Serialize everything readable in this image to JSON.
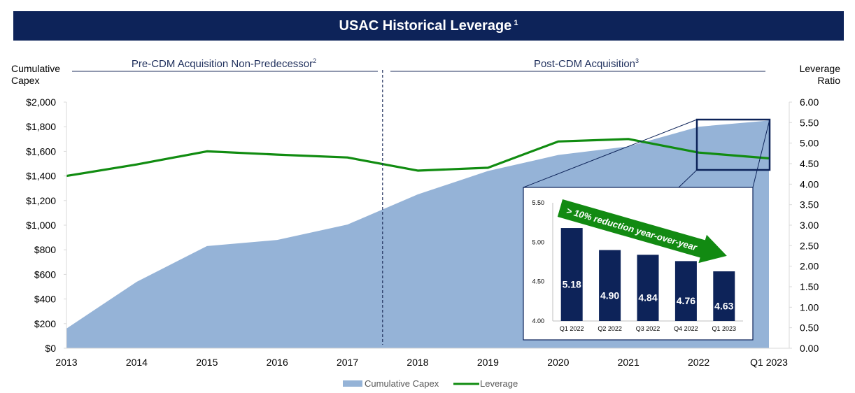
{
  "title": "USAC Historical Leverage",
  "title_sup": "1",
  "sections": [
    {
      "label": "Pre-CDM Acquisition Non-Predecessor",
      "sup": "2"
    },
    {
      "label": "Post-CDM Acquisition",
      "sup": "3"
    }
  ],
  "colors": {
    "banner": "#0d2359",
    "area": "#95b3d7",
    "line": "#118c11",
    "bars": "#0d2359",
    "arrow": "#128a12",
    "section_line": "#1f2f5c"
  },
  "chart_data": [
    {
      "type": "area+line",
      "categories": [
        "2013",
        "2014",
        "2015",
        "2016",
        "2017",
        "2018",
        "2019",
        "2020",
        "2021",
        "2022",
        "Q1 2023"
      ],
      "ylabel_left": [
        "Cumulative",
        "Capex"
      ],
      "ylabel_right": [
        "Leverage",
        "Ratio"
      ],
      "y_left": {
        "min": 0,
        "max": 2000,
        "step": 200,
        "ticks": [
          "$0",
          "$200",
          "$400",
          "$600",
          "$800",
          "$1,000",
          "$1,200",
          "$1,400",
          "$1,600",
          "$1,800",
          "$2,000"
        ]
      },
      "y_right": {
        "min": 0,
        "max": 6,
        "step": 0.5,
        "ticks": [
          "0.00",
          "0.50",
          "1.00",
          "1.50",
          "2.00",
          "2.50",
          "3.00",
          "3.50",
          "4.00",
          "4.50",
          "5.00",
          "5.50",
          "6.00"
        ]
      },
      "series": [
        {
          "name": "Cumulative Capex",
          "kind": "area",
          "axis": "left",
          "values": [
            160,
            540,
            830,
            880,
            1005,
            1250,
            1440,
            1570,
            1640,
            1800,
            1850
          ]
        },
        {
          "name": "Leverage",
          "kind": "line",
          "axis": "right",
          "values": [
            4.2,
            4.48,
            4.8,
            4.72,
            4.65,
            4.33,
            4.4,
            5.04,
            5.1,
            4.77,
            4.63
          ]
        }
      ],
      "divider_after_index": 4,
      "legend_position": "bottom-center",
      "grid": false
    },
    {
      "type": "bar",
      "categories": [
        "Q1 2022",
        "Q2 2022",
        "Q3 2022",
        "Q4 2022",
        "Q1 2023"
      ],
      "values": [
        5.18,
        4.9,
        4.84,
        4.76,
        4.63
      ],
      "labels": [
        "5.18",
        "4.90",
        "4.84",
        "4.76",
        "4.63"
      ],
      "ylim": [
        4.0,
        5.5
      ],
      "ticks": [
        "4.00",
        "4.50",
        "5.00",
        "5.50"
      ],
      "annotation": "> 10% reduction year-over-year"
    }
  ]
}
